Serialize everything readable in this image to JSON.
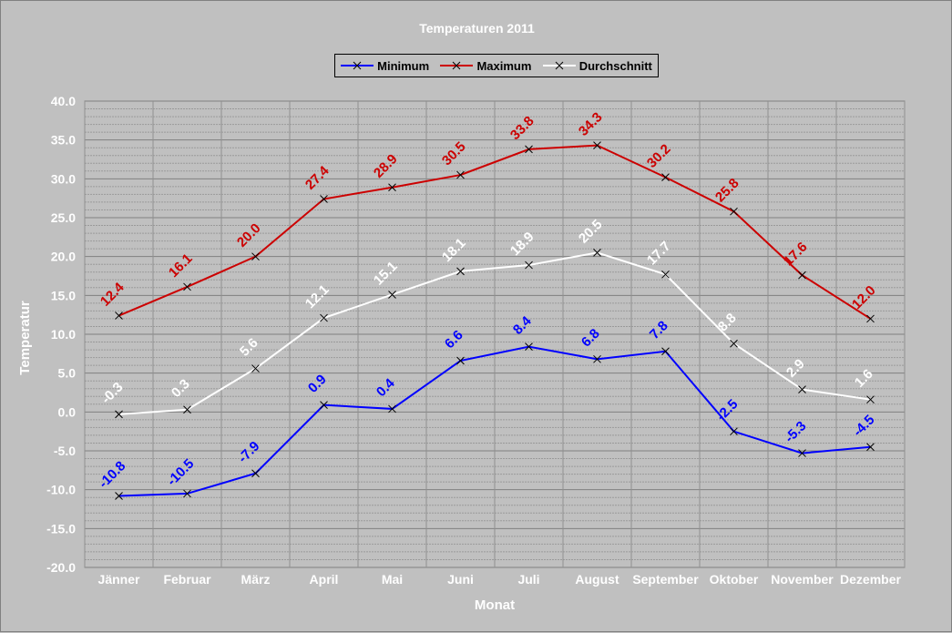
{
  "chart_data": {
    "type": "line",
    "title": "Temperaturen 2011",
    "xlabel": "Monat",
    "ylabel": "Temperatur",
    "categories": [
      "Jänner",
      "Februar",
      "März",
      "April",
      "Mai",
      "Juni",
      "Juli",
      "August",
      "September",
      "Oktober",
      "November",
      "Dezember"
    ],
    "ylim": [
      -20,
      40
    ],
    "y_ticks": [
      "40.0",
      "35.0",
      "30.0",
      "25.0",
      "20.0",
      "15.0",
      "10.0",
      "5.0",
      "0.0",
      "-5.0",
      "-10.0",
      "-15.0",
      "-20.0"
    ],
    "grid": true,
    "legend_position": "top",
    "series": [
      {
        "name": "Minimum",
        "color": "#0000ff",
        "values": [
          -10.8,
          -10.5,
          -7.9,
          0.9,
          0.4,
          6.6,
          8.4,
          6.8,
          7.8,
          -2.5,
          -5.3,
          -4.5
        ],
        "labels": [
          "-10.8",
          "-10.5",
          "-7.9",
          "0.9",
          "0.4",
          "6.6",
          "8.4",
          "6.8",
          "7.8",
          "-2.5",
          "-5.3",
          "-4.5"
        ]
      },
      {
        "name": "Maximum",
        "color": "#cc0000",
        "values": [
          12.4,
          16.1,
          20.0,
          27.4,
          28.9,
          30.5,
          33.8,
          34.3,
          30.2,
          25.8,
          17.6,
          12.0
        ],
        "labels": [
          "12.4",
          "16.1",
          "20.0",
          "27.4",
          "28.9",
          "30.5",
          "33.8",
          "34.3",
          "30.2",
          "25.8",
          "17.6",
          "12.0"
        ]
      },
      {
        "name": "Durchschnitt",
        "color": "#ffffff",
        "values": [
          -0.3,
          0.3,
          5.6,
          12.1,
          15.1,
          18.1,
          18.9,
          20.5,
          17.7,
          8.8,
          2.9,
          1.6
        ],
        "labels": [
          "-0.3",
          "0.3",
          "5.6",
          "12.1",
          "15.1",
          "18.1",
          "18.9",
          "20.5",
          "17.7",
          "8.8",
          "2.9",
          "1.6"
        ]
      }
    ]
  }
}
